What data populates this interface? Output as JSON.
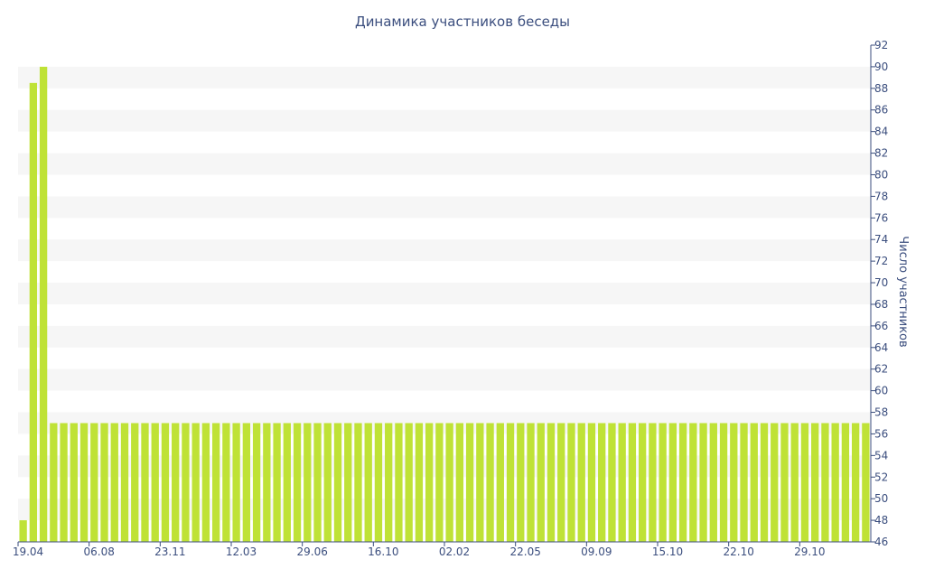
{
  "chart_data": {
    "type": "bar",
    "title": "Динамика участников беседы",
    "ylabel": "Число участников",
    "xlabel": "",
    "ylim": [
      46,
      92
    ],
    "y_ticks": [
      46,
      48,
      50,
      52,
      54,
      56,
      58,
      60,
      62,
      64,
      66,
      68,
      70,
      72,
      74,
      76,
      78,
      80,
      82,
      84,
      86,
      88,
      90,
      92
    ],
    "y_axis_side": "right",
    "x_tick_labels": [
      {
        "index": 0,
        "label": "19.04"
      },
      {
        "index": 7,
        "label": "06.08"
      },
      {
        "index": 14,
        "label": "23.11"
      },
      {
        "index": 21,
        "label": "12.03"
      },
      {
        "index": 28,
        "label": "29.06"
      },
      {
        "index": 35,
        "label": "16.10"
      },
      {
        "index": 42,
        "label": "02.02"
      },
      {
        "index": 49,
        "label": "22.05"
      },
      {
        "index": 56,
        "label": "09.09"
      },
      {
        "index": 63,
        "label": "15.10"
      },
      {
        "index": 70,
        "label": "22.10"
      },
      {
        "index": 77,
        "label": "29.10"
      }
    ],
    "values": [
      48,
      88.5,
      90,
      57,
      57,
      57,
      57,
      57,
      57,
      57,
      57,
      57,
      57,
      57,
      57,
      57,
      57,
      57,
      57,
      57,
      57,
      57,
      57,
      57,
      57,
      57,
      57,
      57,
      57,
      57,
      57,
      57,
      57,
      57,
      57,
      57,
      57,
      57,
      57,
      57,
      57,
      57,
      57,
      57,
      57,
      57,
      57,
      57,
      57,
      57,
      57,
      57,
      57,
      57,
      57,
      57,
      57,
      57,
      57,
      57,
      57,
      57,
      57,
      57,
      57,
      57,
      57,
      57,
      57,
      57,
      57,
      57,
      57,
      57,
      57,
      57,
      57,
      57,
      57,
      57,
      57,
      57,
      57,
      57
    ],
    "grid": "alternating horizontal bands",
    "colors": {
      "bar": "#bfe236",
      "band": "#f6f6f6",
      "text": "#3b4e7e",
      "axis": "#3b4e7e"
    }
  }
}
